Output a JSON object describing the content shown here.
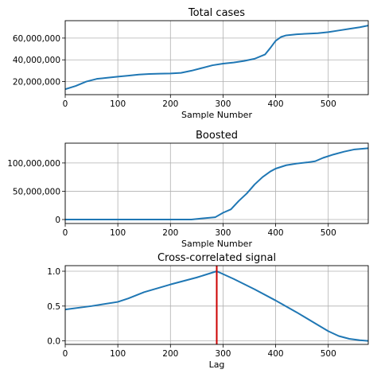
{
  "chart_data": [
    {
      "type": "line",
      "title": "Total cases",
      "xlabel": "Sample Number",
      "ylabel": "",
      "xlim": [
        0,
        576
      ],
      "ylim": [
        8000000,
        76000000
      ],
      "grid": true,
      "x_ticks": [
        0,
        100,
        200,
        300,
        400,
        500
      ],
      "x_tick_labels": [
        "0",
        "100",
        "200",
        "300",
        "400",
        "500"
      ],
      "y_ticks": [
        20000000,
        40000000,
        60000000
      ],
      "y_tick_labels": [
        "20,000,000",
        "40,000,000",
        "60,000,000"
      ],
      "series": [
        {
          "color": "#1f77b4",
          "x": [
            0,
            20,
            40,
            60,
            80,
            100,
            120,
            140,
            160,
            180,
            200,
            220,
            240,
            260,
            280,
            300,
            320,
            340,
            360,
            380,
            390,
            400,
            410,
            420,
            440,
            460,
            480,
            500,
            520,
            540,
            560,
            576
          ],
          "y": [
            13000000,
            16000000,
            20000000,
            22500000,
            23500000,
            24500000,
            25500000,
            26500000,
            27000000,
            27300000,
            27500000,
            28000000,
            30000000,
            32500000,
            35000000,
            36500000,
            37500000,
            39000000,
            41000000,
            45000000,
            51000000,
            57500000,
            61000000,
            62500000,
            63500000,
            64000000,
            64500000,
            65500000,
            67000000,
            68500000,
            70000000,
            71500000
          ]
        }
      ]
    },
    {
      "type": "line",
      "title": "Boosted",
      "xlabel": "Sample Number",
      "ylabel": "",
      "xlim": [
        0,
        576
      ],
      "ylim": [
        -7000000,
        135000000
      ],
      "grid": true,
      "x_ticks": [
        0,
        100,
        200,
        300,
        400,
        500
      ],
      "x_tick_labels": [
        "0",
        "100",
        "200",
        "300",
        "400",
        "500"
      ],
      "y_ticks": [
        0,
        50000000,
        100000000
      ],
      "y_tick_labels": [
        "0",
        "50,000,000",
        "100,000,000"
      ],
      "series": [
        {
          "color": "#1f77b4",
          "x": [
            0,
            100,
            200,
            240,
            260,
            285,
            300,
            315,
            330,
            345,
            360,
            375,
            390,
            400,
            420,
            440,
            460,
            475,
            490,
            510,
            530,
            550,
            576
          ],
          "y": [
            0,
            0,
            0,
            0,
            2000000,
            4000000,
            12000000,
            18000000,
            33000000,
            46000000,
            62000000,
            75000000,
            85000000,
            90000000,
            96000000,
            99000000,
            101000000,
            103000000,
            109000000,
            115000000,
            120000000,
            124000000,
            126000000
          ]
        }
      ]
    },
    {
      "type": "line",
      "title": "Cross-correlated signal",
      "xlabel": "Lag",
      "ylabel": "",
      "xlim": [
        0,
        576
      ],
      "ylim": [
        -0.05,
        1.08
      ],
      "grid": true,
      "x_ticks": [
        0,
        100,
        200,
        300,
        400,
        500
      ],
      "x_tick_labels": [
        "0",
        "100",
        "200",
        "300",
        "400",
        "500"
      ],
      "y_ticks": [
        0.0,
        0.5,
        1.0
      ],
      "y_tick_labels": [
        "0.0",
        "0.5",
        "1.0"
      ],
      "series": [
        {
          "color": "#1f77b4",
          "x": [
            0,
            50,
            100,
            120,
            150,
            200,
            250,
            288,
            320,
            360,
            400,
            440,
            480,
            500,
            520,
            540,
            560,
            576
          ],
          "y": [
            0.45,
            0.5,
            0.56,
            0.61,
            0.7,
            0.81,
            0.91,
            1.0,
            0.89,
            0.74,
            0.58,
            0.41,
            0.23,
            0.14,
            0.07,
            0.03,
            0.01,
            0.0
          ]
        }
      ],
      "vertical_line": {
        "x": 288,
        "color": "#cc0000"
      }
    }
  ]
}
